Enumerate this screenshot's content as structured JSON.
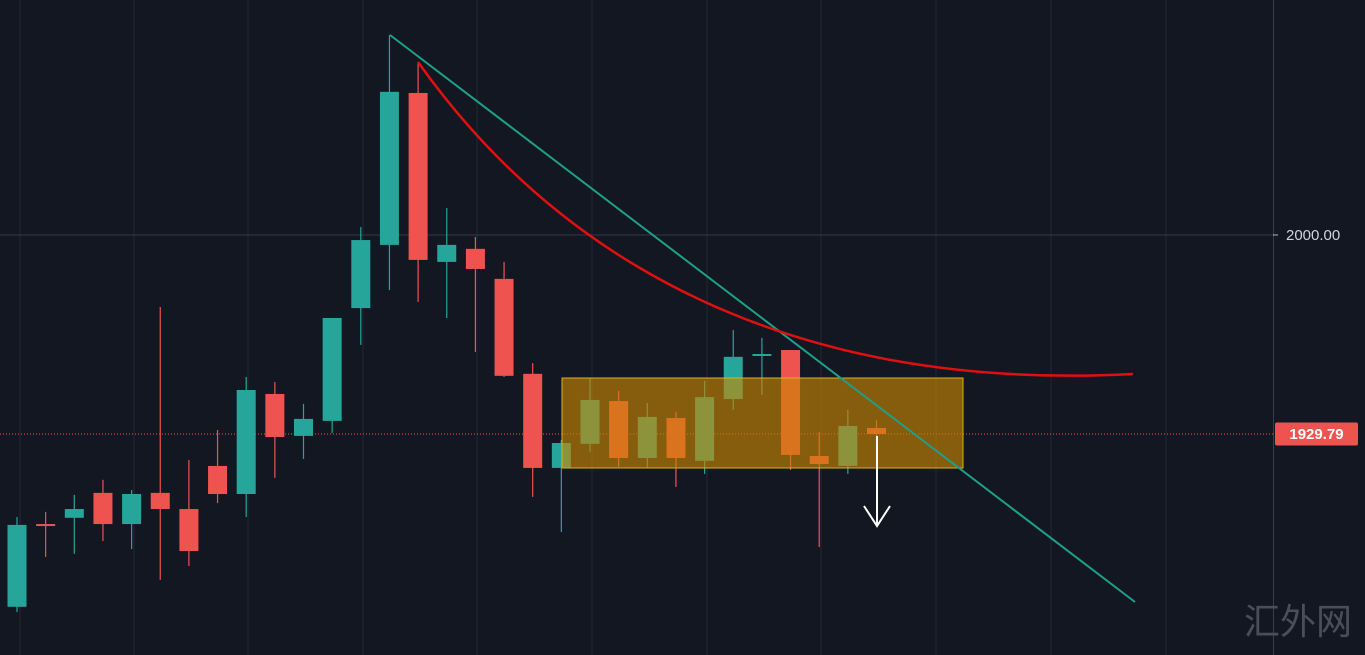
{
  "chart_data": {
    "type": "candlestick",
    "up_color": "#26a69a",
    "down_color": "#ef5350",
    "open": [
      1868.8,
      1898.0,
      1900.2,
      1909.0,
      1898.0,
      1909.0,
      1903.3,
      1918.5,
      1908.6,
      1943.9,
      1929.1,
      1934.4,
      1974.2,
      1996.5,
      2050.1,
      1990.5,
      1995.1,
      1984.5,
      1951.0,
      1917.8,
      1926.3,
      1941.4,
      1921.3,
      1935.4,
      1920.3,
      1942.1,
      1957.3,
      1959.4,
      1922.0,
      1918.5,
      1931.9
    ],
    "high": [
      1900.5,
      1902.3,
      1908.3,
      1913.6,
      1910.0,
      1974.6,
      1920.6,
      1931.2,
      1949.9,
      1948.1,
      1940.4,
      1970.7,
      2002.8,
      2070.6,
      2061.0,
      2009.5,
      1999.3,
      1990.5,
      1954.8,
      1927.7,
      1949.5,
      1945.0,
      1940.7,
      1937.6,
      1948.5,
      1966.5,
      1963.7,
      1959.4,
      1930.5,
      1938.3,
      1934.7
    ],
    "low": [
      1867.0,
      1886.4,
      1887.5,
      1892.0,
      1889.2,
      1878.3,
      1883.2,
      1905.4,
      1900.5,
      1914.3,
      1921.0,
      1930.1,
      1961.2,
      1980.6,
      1976.4,
      1970.7,
      1958.7,
      1949.9,
      1907.6,
      1895.2,
      1923.4,
      1918.1,
      1917.8,
      1911.1,
      1915.7,
      1938.3,
      1943.6,
      1917.1,
      1889.9,
      1915.7,
      1917.8
    ],
    "close": [
      1897.7,
      1897.3,
      1903.3,
      1898.0,
      1908.6,
      1903.3,
      1888.5,
      1908.6,
      1945.3,
      1928.7,
      1935.1,
      1970.7,
      1998.2,
      2050.5,
      1991.2,
      1996.5,
      1988.0,
      1950.3,
      1917.8,
      1926.6,
      1941.8,
      1921.3,
      1935.8,
      1921.3,
      1942.8,
      1957.0,
      1958.0,
      1922.4,
      1919.2,
      1932.6,
      1929.79
    ],
    "ylim": [
      1851.8,
      2082.9
    ],
    "yticks": [
      {
        "value": 2000,
        "label": "2000.00"
      }
    ],
    "last_price": 1929.79,
    "watermark": "汇外网"
  }
}
